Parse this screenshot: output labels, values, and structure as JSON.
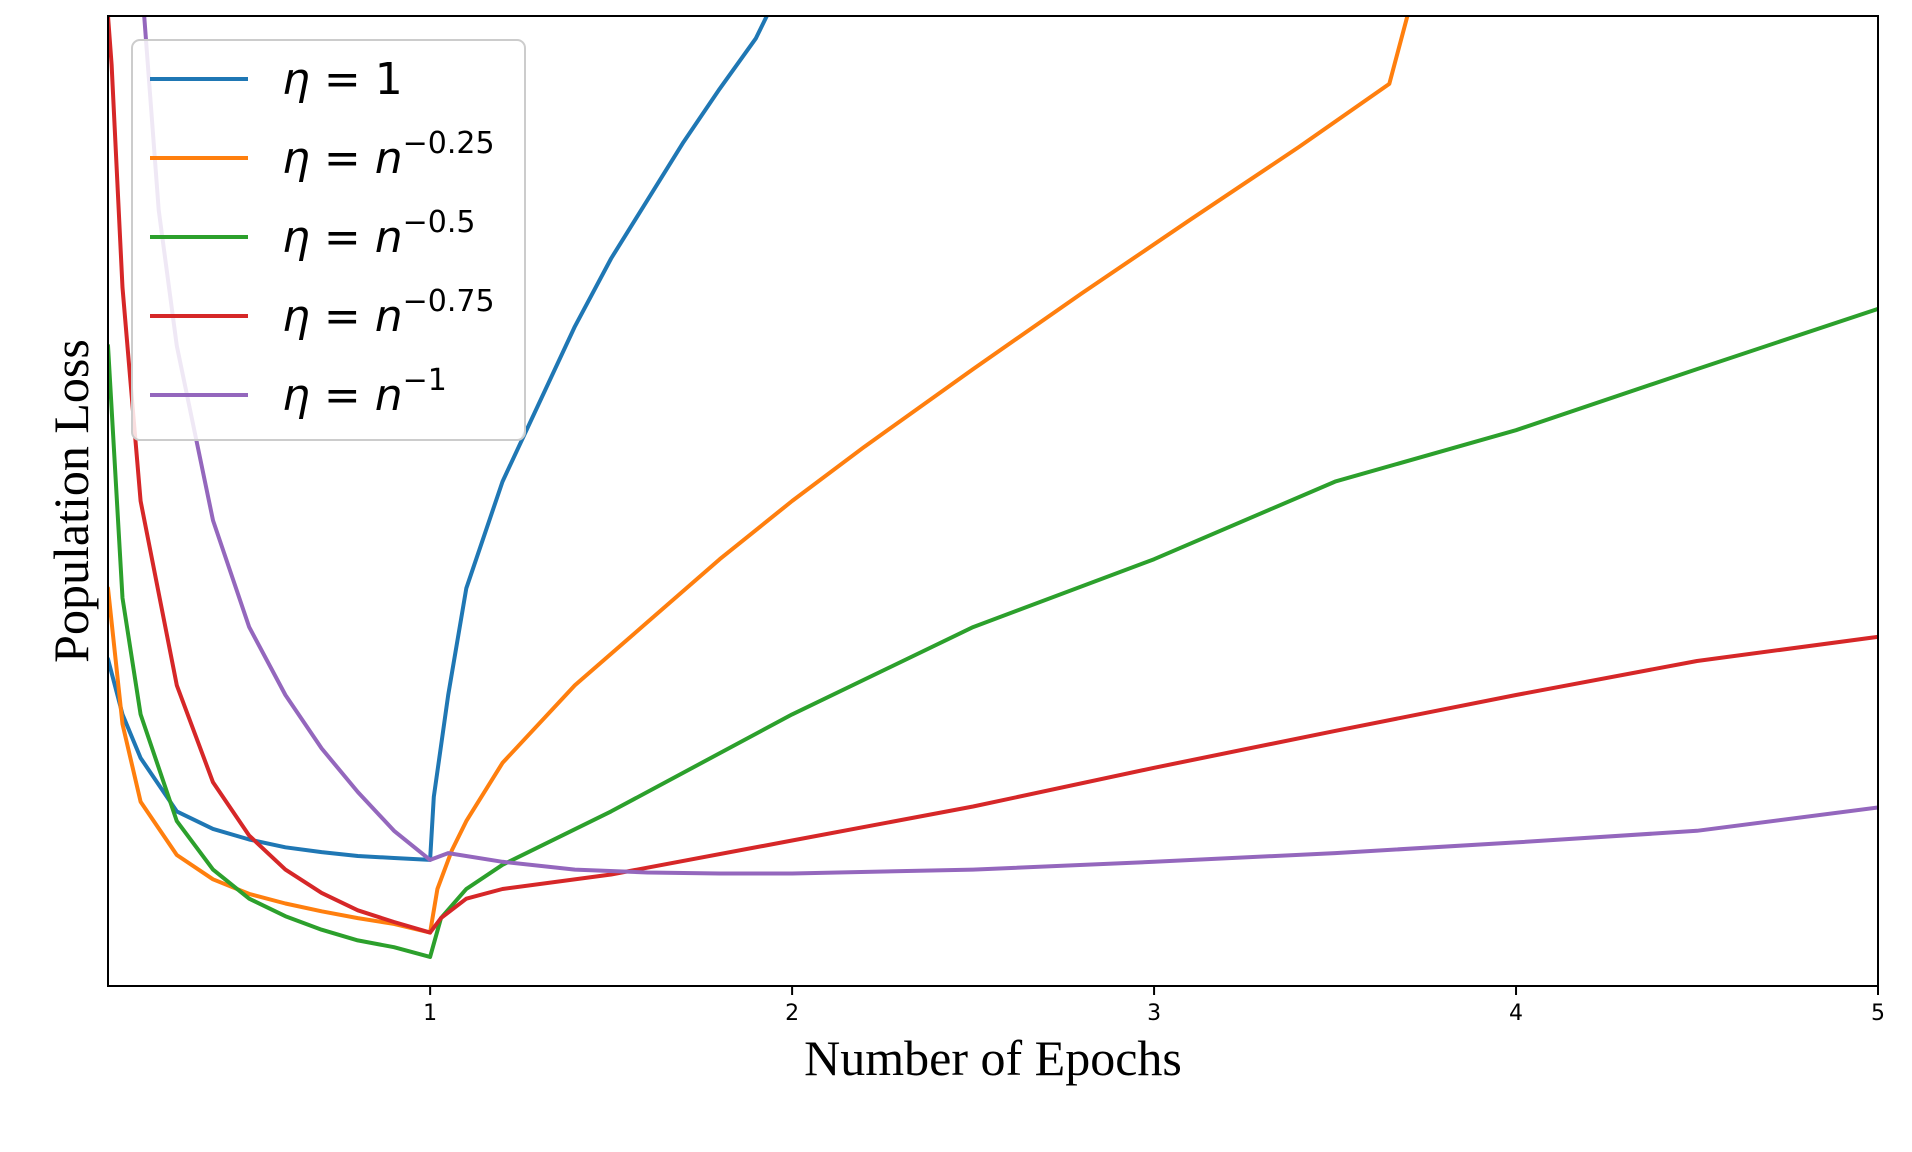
{
  "chart_data": {
    "type": "line",
    "title": "",
    "xlabel": "Number of Epochs",
    "ylabel": "Population Loss",
    "xlim": [
      0.11,
      5
    ],
    "ylim": [
      0,
      1
    ],
    "xticks": [
      1,
      2,
      3,
      4,
      5
    ],
    "xtick_labels": [
      "1",
      "2",
      "3",
      "4",
      "5"
    ],
    "yticks_shown": false,
    "grid": false,
    "legend_position": "top-left",
    "series": [
      {
        "name": "η = 1",
        "legend": {
          "base": "η = ",
          "value": "1",
          "sup": ""
        },
        "color": "#1f77b4",
        "points": [
          [
            0.11,
            0.337
          ],
          [
            0.15,
            0.28
          ],
          [
            0.2,
            0.235
          ],
          [
            0.3,
            0.18
          ],
          [
            0.4,
            0.162
          ],
          [
            0.5,
            0.151
          ],
          [
            0.6,
            0.143
          ],
          [
            0.7,
            0.138
          ],
          [
            0.8,
            0.134
          ],
          [
            0.9,
            0.132
          ],
          [
            1.0,
            0.13
          ],
          [
            1.01,
            0.195
          ],
          [
            1.05,
            0.3
          ],
          [
            1.1,
            0.41
          ],
          [
            1.2,
            0.52
          ],
          [
            1.3,
            0.6
          ],
          [
            1.4,
            0.68
          ],
          [
            1.5,
            0.75
          ],
          [
            1.6,
            0.81
          ],
          [
            1.7,
            0.87
          ],
          [
            1.8,
            0.925
          ],
          [
            1.9,
            0.977
          ],
          [
            1.93,
            1.0
          ]
        ]
      },
      {
        "name": "η = n^-0.25",
        "legend": {
          "base": "η = ",
          "value": "n",
          "sup": "−0.25"
        },
        "color": "#ff7f0e",
        "points": [
          [
            0.11,
            0.41
          ],
          [
            0.15,
            0.27
          ],
          [
            0.2,
            0.19
          ],
          [
            0.3,
            0.135
          ],
          [
            0.4,
            0.11
          ],
          [
            0.5,
            0.095
          ],
          [
            0.6,
            0.085
          ],
          [
            0.7,
            0.077
          ],
          [
            0.8,
            0.07
          ],
          [
            0.9,
            0.064
          ],
          [
            1.0,
            0.055
          ],
          [
            1.02,
            0.1
          ],
          [
            1.06,
            0.14
          ],
          [
            1.1,
            0.17
          ],
          [
            1.2,
            0.23
          ],
          [
            1.4,
            0.31
          ],
          [
            1.6,
            0.375
          ],
          [
            1.8,
            0.44
          ],
          [
            2.0,
            0.5
          ],
          [
            2.2,
            0.556
          ],
          [
            2.5,
            0.636
          ],
          [
            2.8,
            0.714
          ],
          [
            3.1,
            0.79
          ],
          [
            3.4,
            0.865
          ],
          [
            3.65,
            0.93
          ],
          [
            3.7,
            1.0
          ]
        ]
      },
      {
        "name": "η = n^-0.5",
        "legend": {
          "base": "η = ",
          "value": "n",
          "sup": "−0.5"
        },
        "color": "#2ca02c",
        "points": [
          [
            0.11,
            0.66
          ],
          [
            0.15,
            0.4
          ],
          [
            0.2,
            0.28
          ],
          [
            0.3,
            0.17
          ],
          [
            0.4,
            0.12
          ],
          [
            0.5,
            0.09
          ],
          [
            0.6,
            0.072
          ],
          [
            0.7,
            0.058
          ],
          [
            0.8,
            0.047
          ],
          [
            0.9,
            0.04
          ],
          [
            1.0,
            0.03
          ],
          [
            1.03,
            0.07
          ],
          [
            1.1,
            0.1
          ],
          [
            1.2,
            0.125
          ],
          [
            1.5,
            0.18
          ],
          [
            2.0,
            0.28
          ],
          [
            2.5,
            0.37
          ],
          [
            3.0,
            0.44
          ],
          [
            3.5,
            0.52
          ],
          [
            4.0,
            0.573
          ],
          [
            4.5,
            0.636
          ],
          [
            5.0,
            0.698
          ]
        ]
      },
      {
        "name": "η = n^-0.75",
        "legend": {
          "base": "η = ",
          "value": "n",
          "sup": "−0.75"
        },
        "color": "#d62728",
        "points": [
          [
            0.11,
            1.0
          ],
          [
            0.12,
            0.95
          ],
          [
            0.15,
            0.72
          ],
          [
            0.2,
            0.5
          ],
          [
            0.3,
            0.31
          ],
          [
            0.4,
            0.21
          ],
          [
            0.5,
            0.155
          ],
          [
            0.6,
            0.12
          ],
          [
            0.7,
            0.096
          ],
          [
            0.8,
            0.078
          ],
          [
            0.9,
            0.066
          ],
          [
            1.0,
            0.055
          ],
          [
            1.03,
            0.07
          ],
          [
            1.1,
            0.09
          ],
          [
            1.2,
            0.1
          ],
          [
            1.5,
            0.115
          ],
          [
            2.0,
            0.15
          ],
          [
            2.5,
            0.185
          ],
          [
            3.0,
            0.225
          ],
          [
            3.5,
            0.263
          ],
          [
            4.0,
            0.3
          ],
          [
            4.5,
            0.335
          ],
          [
            5.0,
            0.36
          ]
        ]
      },
      {
        "name": "η = n^-1",
        "legend": {
          "base": "η = ",
          "value": "n",
          "sup": "−1"
        },
        "color": "#9467bd",
        "points": [
          [
            0.21,
            1.0
          ],
          [
            0.25,
            0.8
          ],
          [
            0.3,
            0.66
          ],
          [
            0.35,
            0.57
          ],
          [
            0.4,
            0.48
          ],
          [
            0.5,
            0.37
          ],
          [
            0.6,
            0.3
          ],
          [
            0.7,
            0.245
          ],
          [
            0.8,
            0.2
          ],
          [
            0.9,
            0.16
          ],
          [
            1.0,
            0.13
          ],
          [
            1.05,
            0.137
          ],
          [
            1.2,
            0.128
          ],
          [
            1.4,
            0.12
          ],
          [
            1.6,
            0.117
          ],
          [
            1.8,
            0.116
          ],
          [
            2.0,
            0.116
          ],
          [
            2.5,
            0.12
          ],
          [
            3.0,
            0.128
          ],
          [
            3.5,
            0.137
          ],
          [
            4.0,
            0.148
          ],
          [
            4.5,
            0.16
          ],
          [
            5.0,
            0.184
          ]
        ]
      }
    ]
  }
}
